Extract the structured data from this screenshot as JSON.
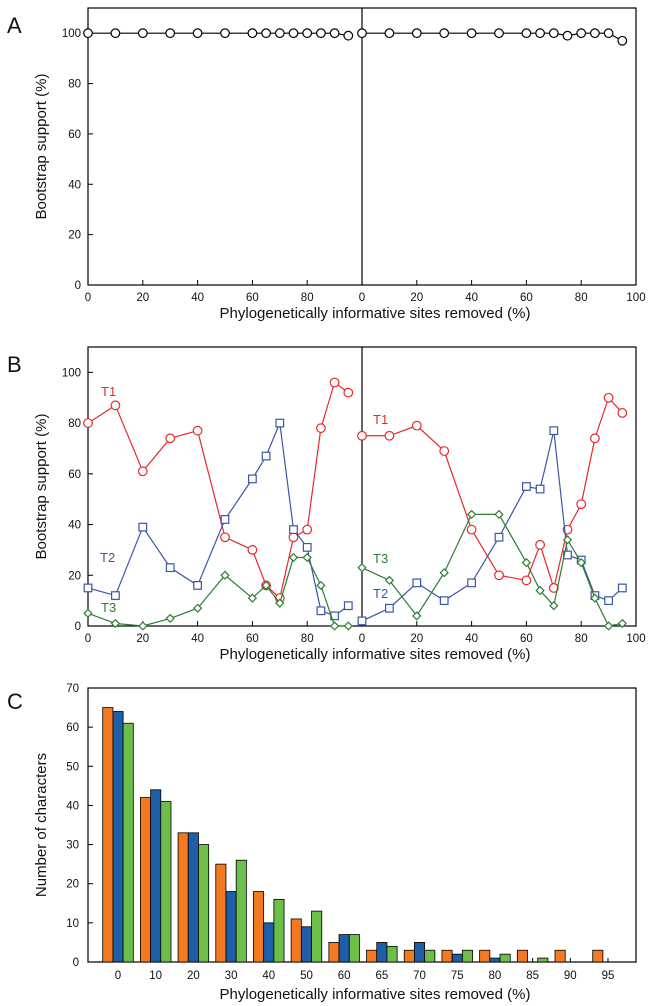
{
  "colors": {
    "black": "#000000",
    "t1": "#e8282b",
    "t2": "#3a56a6",
    "t3": "#2e7d32",
    "bar_orange": "#f47920",
    "bar_blue": "#1f5fa8",
    "bar_green": "#6cc04a"
  },
  "chart_data": [
    {
      "panel": "A",
      "type": "line",
      "xlabel": "Phylogenetically informative sites removed (%)",
      "ylabel": "Bootstrap support (%)",
      "ylim": [
        0,
        110
      ],
      "xlim": [
        0,
        100
      ],
      "x_ticks": [
        0,
        20,
        40,
        60,
        80,
        100
      ],
      "y_ticks": [
        0,
        20,
        40,
        60,
        80,
        100
      ],
      "grid": false,
      "subpanels": [
        {
          "series": [
            {
              "marker": "circle",
              "color": "#000000",
              "x": [
                0,
                10,
                20,
                30,
                40,
                50,
                60,
                65,
                70,
                75,
                80,
                85,
                90,
                95
              ],
              "values": [
                100,
                100,
                100,
                100,
                100,
                100,
                100,
                100,
                100,
                100,
                100,
                100,
                100,
                99
              ]
            }
          ]
        },
        {
          "series": [
            {
              "marker": "circle",
              "color": "#000000",
              "x": [
                0,
                10,
                20,
                30,
                40,
                50,
                60,
                65,
                70,
                75,
                80,
                85,
                90,
                95
              ],
              "values": [
                100,
                100,
                100,
                100,
                100,
                100,
                100,
                100,
                100,
                99,
                100,
                100,
                100,
                97
              ]
            }
          ]
        }
      ]
    },
    {
      "panel": "B",
      "type": "line",
      "xlabel": "Phylogenetically informative sites removed (%)",
      "ylabel": "Bootstrap support (%)",
      "ylim": [
        0,
        110
      ],
      "xlim": [
        0,
        100
      ],
      "x_ticks": [
        0,
        20,
        40,
        60,
        80,
        100
      ],
      "y_ticks": [
        0,
        20,
        40,
        60,
        80,
        100
      ],
      "grid": false,
      "subpanels": [
        {
          "series": [
            {
              "name": "T1",
              "marker": "circle",
              "color": "#e8282b",
              "x": [
                0,
                10,
                20,
                30,
                40,
                50,
                60,
                65,
                70,
                75,
                80,
                85,
                90,
                95
              ],
              "values": [
                80,
                87,
                61,
                74,
                77,
                35,
                30,
                16,
                11,
                35,
                38,
                78,
                96,
                92
              ]
            },
            {
              "name": "T2",
              "marker": "square",
              "color": "#3a56a6",
              "x": [
                0,
                10,
                20,
                30,
                40,
                50,
                60,
                65,
                70,
                75,
                80,
                85,
                90,
                95
              ],
              "values": [
                15,
                12,
                39,
                23,
                16,
                42,
                58,
                67,
                80,
                38,
                31,
                6,
                4,
                8
              ]
            },
            {
              "name": "T3",
              "marker": "diamond",
              "color": "#2e7d32",
              "x": [
                0,
                10,
                20,
                30,
                40,
                50,
                60,
                65,
                70,
                75,
                80,
                85,
                90,
                95
              ],
              "values": [
                5,
                1,
                0,
                3,
                7,
                20,
                11,
                16,
                9,
                27,
                27,
                16,
                0,
                0
              ]
            }
          ]
        },
        {
          "series": [
            {
              "name": "T1",
              "marker": "circle",
              "color": "#e8282b",
              "x": [
                0,
                10,
                20,
                30,
                40,
                50,
                60,
                65,
                70,
                75,
                80,
                85,
                90,
                95
              ],
              "values": [
                75,
                75,
                79,
                69,
                38,
                20,
                18,
                32,
                15,
                38,
                48,
                74,
                90,
                84
              ]
            },
            {
              "name": "T2",
              "marker": "square",
              "color": "#3a56a6",
              "x": [
                0,
                10,
                20,
                30,
                40,
                50,
                60,
                65,
                70,
                75,
                80,
                85,
                90,
                95
              ],
              "values": [
                2,
                7,
                17,
                10,
                17,
                35,
                55,
                54,
                77,
                28,
                26,
                12,
                10,
                15
              ]
            },
            {
              "name": "T3",
              "marker": "diamond",
              "color": "#2e7d32",
              "x": [
                0,
                10,
                20,
                30,
                40,
                50,
                60,
                65,
                70,
                75,
                80,
                85,
                90,
                95
              ],
              "values": [
                23,
                18,
                4,
                21,
                44,
                44,
                25,
                14,
                8,
                34,
                25,
                11,
                0,
                1
              ]
            }
          ]
        }
      ]
    },
    {
      "panel": "C",
      "type": "bar",
      "xlabel": "Phylogenetically informative sites removed (%)",
      "ylabel": "Number of characters",
      "ylim": [
        0,
        70
      ],
      "y_ticks": [
        0,
        10,
        20,
        30,
        40,
        50,
        60,
        70
      ],
      "grid": false,
      "categories": [
        "0",
        "10",
        "20",
        "30",
        "40",
        "50",
        "60",
        "65",
        "70",
        "75",
        "80",
        "85",
        "90",
        "95"
      ],
      "series": [
        {
          "color": "#f47920",
          "values": [
            65,
            42,
            33,
            25,
            18,
            11,
            5,
            3,
            3,
            3,
            3,
            3,
            3,
            3
          ]
        },
        {
          "color": "#1f5fa8",
          "values": [
            64,
            44,
            33,
            18,
            10,
            9,
            7,
            5,
            5,
            2,
            1,
            null,
            null,
            null
          ]
        },
        {
          "color": "#6cc04a",
          "values": [
            61,
            41,
            30,
            26,
            16,
            13,
            7,
            4,
            3,
            3,
            2,
            1,
            null,
            null
          ]
        }
      ]
    }
  ]
}
